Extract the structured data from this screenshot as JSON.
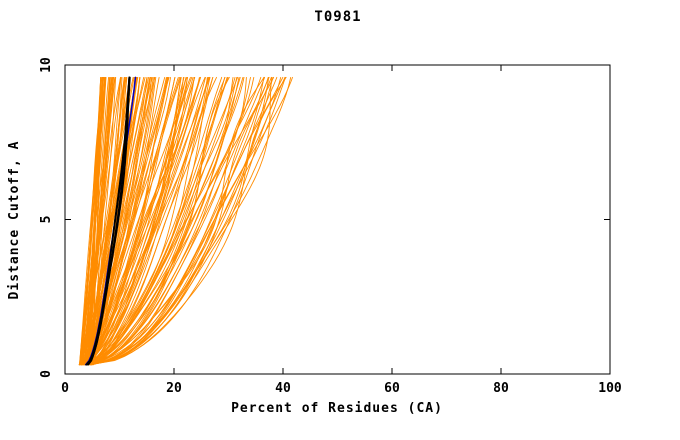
{
  "chart_data": {
    "type": "line",
    "title": "T0981",
    "xlabel": "Percent of Residues (CA)",
    "ylabel": "Distance Cutoff, A",
    "xlim": [
      0,
      100
    ],
    "ylim": [
      0,
      10
    ],
    "x_ticks": [
      0,
      20,
      40,
      60,
      80,
      100
    ],
    "y_ticks": [
      0,
      5,
      10
    ],
    "grid": false,
    "legend": "none",
    "background": "#ffffff",
    "frame_color": "#000000",
    "series_groups": [
      {
        "name": "orange-model-curves",
        "color": "#FF8C00",
        "count": 150,
        "line_width": 0.9,
        "x_start_range": [
          2.6,
          5.2
        ],
        "x_end_range": [
          6.5,
          41
        ],
        "x_end_skew": 1.8,
        "y_start": 0.3,
        "y_end": 9.6,
        "shape_exponent_range": [
          0.45,
          0.95
        ],
        "seed": 42,
        "z": 1
      },
      {
        "name": "blue-highlight-curve",
        "color": "#0000CD",
        "count": 1,
        "line_width": 1.5,
        "x_start_range": [
          3.8,
          4.2
        ],
        "x_end_range": [
          12.4,
          13.2
        ],
        "x_end_skew": 1,
        "y_start": 0.3,
        "y_end": 9.6,
        "shape_exponent_range": [
          0.52,
          0.6
        ],
        "seed": 7,
        "z": 2
      },
      {
        "name": "black-best-model-curves",
        "color": "#000000",
        "count": 4,
        "line_width": 1.6,
        "x_start_range": [
          3.5,
          4.5
        ],
        "x_end_range": [
          10.8,
          13.6
        ],
        "x_end_skew": 1,
        "y_start": 0.3,
        "y_end": 9.6,
        "shape_exponent_range": [
          0.5,
          0.63
        ],
        "seed": 11,
        "z": 3
      }
    ]
  }
}
